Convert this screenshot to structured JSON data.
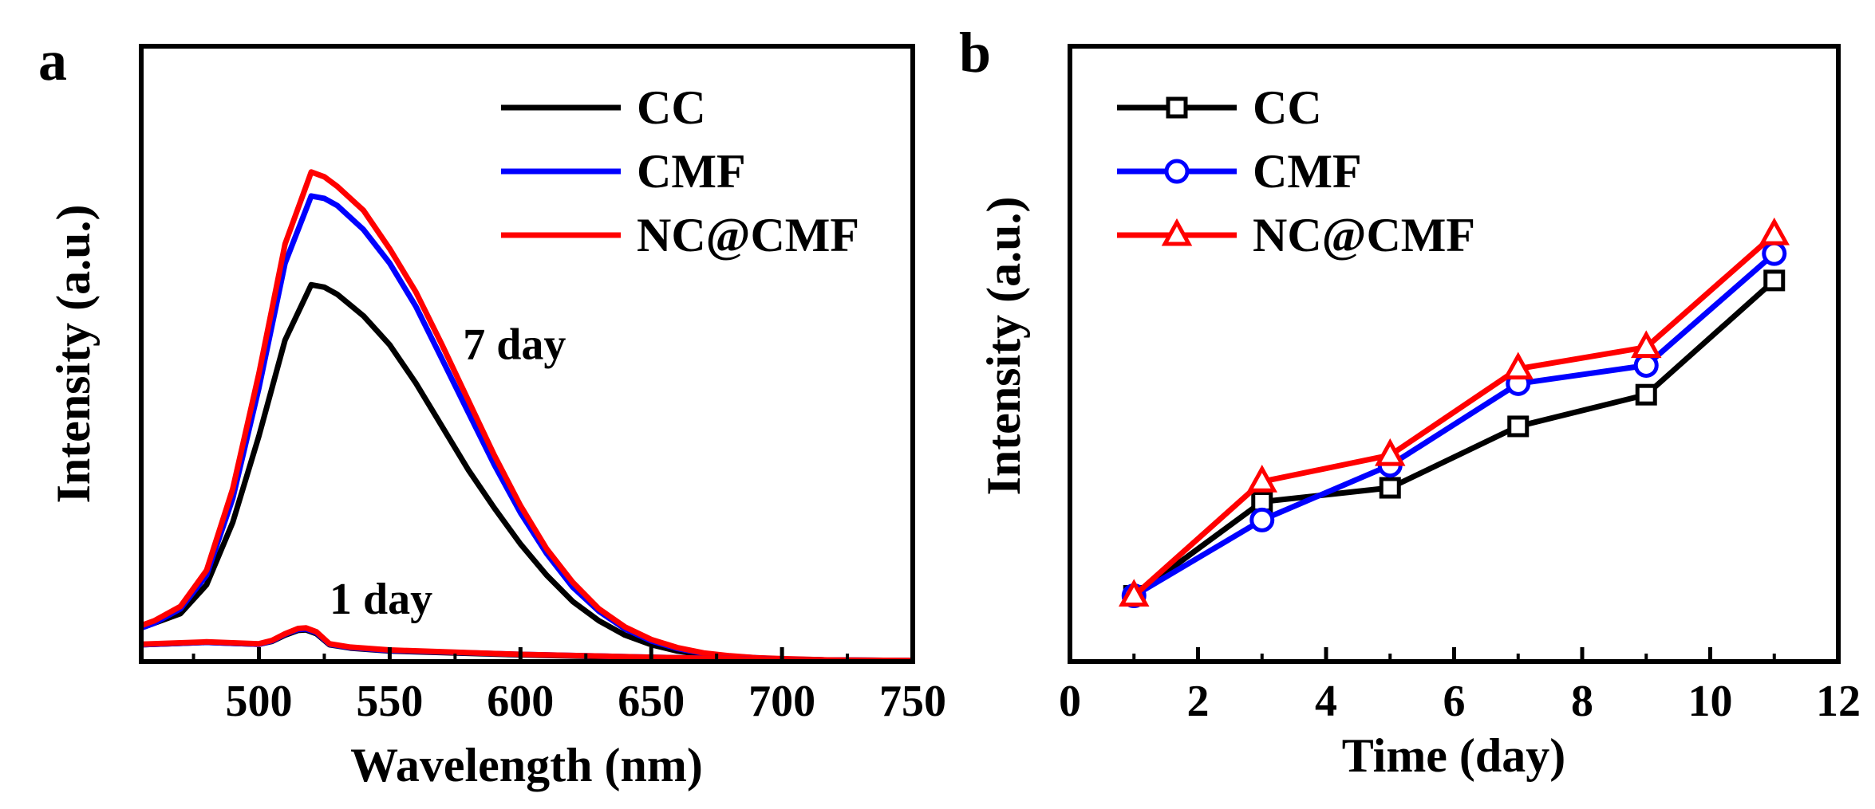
{
  "chart_data": [
    {
      "panel": "a",
      "type": "line",
      "title": "",
      "xlabel": "Wavelength (nm)",
      "ylabel": "Intensity (a.u.)",
      "xlim": [
        455,
        750
      ],
      "ylim": [
        0,
        1.0
      ],
      "xticks": [
        500,
        550,
        600,
        650,
        700,
        750
      ],
      "yticks": [],
      "legend_position": "top-right",
      "series": [
        {
          "name": "CC",
          "color": "#000000",
          "x": [
            455,
            460,
            470,
            480,
            490,
            500,
            510,
            520,
            525,
            530,
            540,
            550,
            560,
            570,
            580,
            590,
            600,
            610,
            620,
            630,
            640,
            650,
            660,
            670,
            680,
            690,
            700,
            720,
            750
          ],
          "y": [
            0.07,
            0.08,
            0.1,
            0.16,
            0.29,
            0.47,
            0.67,
            0.785,
            0.78,
            0.765,
            0.72,
            0.66,
            0.58,
            0.49,
            0.4,
            0.32,
            0.245,
            0.18,
            0.125,
            0.085,
            0.055,
            0.035,
            0.022,
            0.014,
            0.01,
            0.007,
            0.005,
            0.003,
            0.001
          ]
        },
        {
          "name": "CMF",
          "color": "#0000ff",
          "x": [
            455,
            460,
            470,
            480,
            490,
            500,
            510,
            520,
            525,
            530,
            540,
            550,
            560,
            570,
            580,
            590,
            600,
            610,
            620,
            630,
            640,
            650,
            660,
            670,
            680,
            690,
            700,
            720,
            750
          ],
          "y": [
            0.07,
            0.08,
            0.11,
            0.18,
            0.34,
            0.57,
            0.83,
            0.97,
            0.965,
            0.95,
            0.9,
            0.83,
            0.74,
            0.63,
            0.52,
            0.41,
            0.31,
            0.225,
            0.155,
            0.105,
            0.068,
            0.043,
            0.027,
            0.017,
            0.011,
            0.008,
            0.005,
            0.003,
            0.001
          ]
        },
        {
          "name": "NC@CMF",
          "color": "#ff0000",
          "x": [
            455,
            460,
            470,
            480,
            490,
            500,
            510,
            520,
            525,
            530,
            540,
            550,
            560,
            570,
            580,
            590,
            600,
            610,
            620,
            630,
            640,
            650,
            660,
            670,
            680,
            690,
            700,
            720,
            750
          ],
          "y": [
            0.075,
            0.085,
            0.115,
            0.19,
            0.36,
            0.6,
            0.87,
            1.02,
            1.01,
            0.99,
            0.94,
            0.86,
            0.77,
            0.66,
            0.545,
            0.43,
            0.325,
            0.235,
            0.165,
            0.11,
            0.072,
            0.046,
            0.029,
            0.018,
            0.012,
            0.008,
            0.006,
            0.003,
            0.001
          ]
        },
        {
          "name": "CC-1day",
          "color": "#000000",
          "legend": false,
          "x": [
            455,
            470,
            480,
            490,
            500,
            505,
            510,
            515,
            518,
            522,
            527,
            535,
            550,
            600,
            650,
            700,
            750
          ],
          "y": [
            0.035,
            0.038,
            0.04,
            0.038,
            0.036,
            0.042,
            0.055,
            0.065,
            0.066,
            0.058,
            0.035,
            0.028,
            0.022,
            0.014,
            0.008,
            0.004,
            0.002
          ]
        },
        {
          "name": "CMF-1day",
          "color": "#0000ff",
          "legend": false,
          "x": [
            455,
            470,
            480,
            490,
            500,
            505,
            510,
            515,
            518,
            522,
            527,
            535,
            550,
            600,
            650,
            700,
            750
          ],
          "y": [
            0.035,
            0.038,
            0.04,
            0.038,
            0.036,
            0.043,
            0.057,
            0.067,
            0.068,
            0.06,
            0.036,
            0.029,
            0.023,
            0.015,
            0.009,
            0.004,
            0.002
          ]
        },
        {
          "name": "NC@CMF-1day",
          "color": "#ff0000",
          "legend": false,
          "x": [
            455,
            470,
            480,
            490,
            500,
            505,
            510,
            515,
            518,
            522,
            527,
            535,
            550,
            600,
            650,
            700,
            750
          ],
          "y": [
            0.036,
            0.039,
            0.041,
            0.039,
            0.037,
            0.044,
            0.058,
            0.069,
            0.07,
            0.062,
            0.037,
            0.03,
            0.024,
            0.015,
            0.009,
            0.004,
            0.002
          ]
        }
      ],
      "annotations": [
        {
          "text": "7 day",
          "x": 578,
          "y": 0.63
        },
        {
          "text": "1 day",
          "x": 527,
          "y": 0.1
        }
      ]
    },
    {
      "panel": "b",
      "type": "line",
      "title": "",
      "xlabel": "Time (day)",
      "ylabel": "Intensity (a.u.)",
      "xlim": [
        0,
        12
      ],
      "ylim": [
        0,
        1.0
      ],
      "xticks": [
        0,
        2,
        4,
        6,
        8,
        10,
        12
      ],
      "yticks": [],
      "legend_position": "top-left",
      "series": [
        {
          "name": "CC",
          "color": "#000000",
          "marker": "square",
          "x": [
            1,
            3,
            5,
            7,
            9,
            11
          ],
          "y": [
            0.137,
            0.333,
            0.362,
            0.49,
            0.556,
            0.794
          ]
        },
        {
          "name": "CMF",
          "color": "#0000ff",
          "marker": "circle",
          "x": [
            1,
            3,
            5,
            7,
            9,
            11
          ],
          "y": [
            0.137,
            0.295,
            0.409,
            0.579,
            0.617,
            0.85
          ]
        },
        {
          "name": "NC@CMF",
          "color": "#ff0000",
          "marker": "triangle",
          "x": [
            1,
            3,
            5,
            7,
            9,
            11
          ],
          "y": [
            0.137,
            0.375,
            0.43,
            0.61,
            0.655,
            0.89
          ]
        }
      ]
    }
  ],
  "labels": {
    "panel_a": "a",
    "panel_b": "b"
  }
}
